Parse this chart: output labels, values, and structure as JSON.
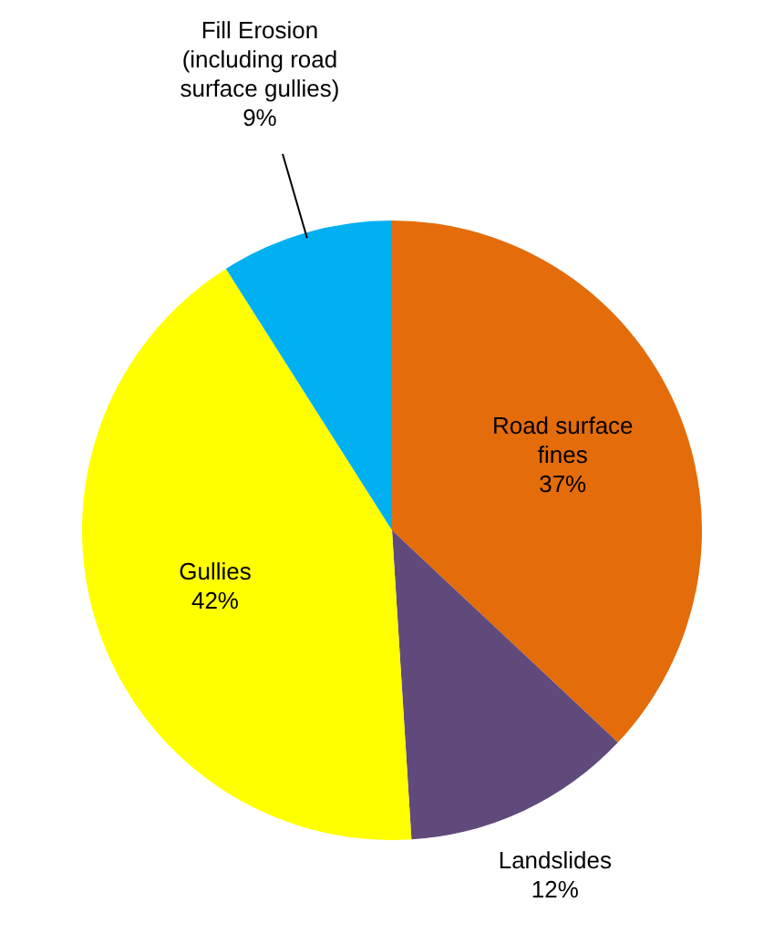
{
  "chart_data": {
    "type": "pie",
    "categories": [
      "Road surface fines",
      "Landslides",
      "Gullies",
      "Fill Erosion (including road surface gullies)"
    ],
    "values": [
      37,
      12,
      42,
      9
    ],
    "colors": [
      "#e46c0a",
      "#604a7b",
      "#ffff00",
      "#00b0f0"
    ],
    "value_labels": [
      "37%",
      "12%",
      "42%",
      "9%"
    ]
  }
}
